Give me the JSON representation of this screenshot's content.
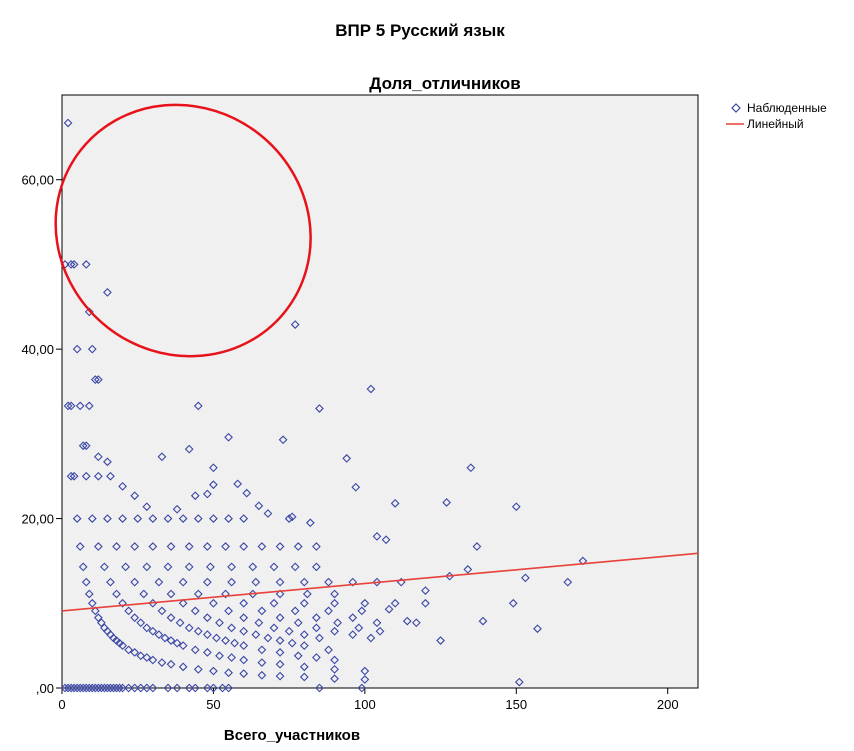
{
  "chart_data": {
    "type": "scatter",
    "title": "ВПР 5 Русский язык",
    "subtitle": "Доля_отличников",
    "xlabel": "Всего_участников",
    "ylabel": "",
    "xlim": [
      0,
      210
    ],
    "ylim": [
      0,
      70
    ],
    "x_ticks": [
      0,
      50,
      100,
      150,
      200
    ],
    "x_tick_labels": [
      "0",
      "50",
      "100",
      "150",
      "200"
    ],
    "y_ticks": [
      0,
      20,
      40,
      60
    ],
    "y_tick_labels": [
      ",00",
      "20,00",
      "40,00",
      "60,00"
    ],
    "grid": false,
    "legend_position": "top-right outside",
    "legend": [
      "Наблюденные",
      "Линейный"
    ],
    "colors": {
      "plot_background": "#f0f0f0",
      "marker": "#3b47a6",
      "fit_line": "#e8413a",
      "annotation_ellipse": "#e8121a"
    },
    "series": [
      {
        "name": "Наблюденные",
        "points": [
          [
            1,
            0
          ],
          [
            2,
            0
          ],
          [
            3,
            0
          ],
          [
            4,
            0
          ],
          [
            5,
            0
          ],
          [
            6,
            0
          ],
          [
            7,
            0
          ],
          [
            8,
            0
          ],
          [
            9,
            0
          ],
          [
            10,
            0
          ],
          [
            11,
            0
          ],
          [
            12,
            0
          ],
          [
            13,
            0
          ],
          [
            14,
            0
          ],
          [
            15,
            0
          ],
          [
            16,
            0
          ],
          [
            17,
            0
          ],
          [
            18,
            0
          ],
          [
            19,
            0
          ],
          [
            20,
            0
          ],
          [
            22,
            0
          ],
          [
            24,
            0
          ],
          [
            26,
            0
          ],
          [
            28,
            0
          ],
          [
            30,
            0
          ],
          [
            35,
            0
          ],
          [
            38,
            0
          ],
          [
            42,
            0
          ],
          [
            44,
            0
          ],
          [
            48,
            0
          ],
          [
            50,
            0
          ],
          [
            53,
            0
          ],
          [
            55,
            0
          ],
          [
            85,
            0
          ],
          [
            99,
            0
          ],
          [
            2,
            66.7
          ],
          [
            1,
            50
          ],
          [
            3,
            50
          ],
          [
            4,
            50
          ],
          [
            8,
            50
          ],
          [
            15,
            46.7
          ],
          [
            9,
            44.4
          ],
          [
            77,
            42.9
          ],
          [
            5,
            40
          ],
          [
            10,
            40
          ],
          [
            11,
            36.4
          ],
          [
            12,
            36.4
          ],
          [
            2,
            33.3
          ],
          [
            3,
            33.3
          ],
          [
            6,
            33.3
          ],
          [
            9,
            33.3
          ],
          [
            45,
            33.3
          ],
          [
            102,
            35.3
          ],
          [
            85,
            33
          ],
          [
            55,
            29.6
          ],
          [
            73,
            29.3
          ],
          [
            7,
            28.6
          ],
          [
            8,
            28.6
          ],
          [
            15,
            26.7
          ],
          [
            12,
            27.3
          ],
          [
            33,
            27.3
          ],
          [
            42,
            28.2
          ],
          [
            50,
            26
          ],
          [
            94,
            27.1
          ],
          [
            135,
            26
          ],
          [
            3,
            25
          ],
          [
            4,
            25
          ],
          [
            8,
            25
          ],
          [
            12,
            25
          ],
          [
            16,
            25
          ],
          [
            20,
            23.8
          ],
          [
            24,
            22.7
          ],
          [
            28,
            21.4
          ],
          [
            38,
            21.1
          ],
          [
            44,
            22.7
          ],
          [
            48,
            22.9
          ],
          [
            50,
            24
          ],
          [
            58,
            24.1
          ],
          [
            61,
            23
          ],
          [
            65,
            21.5
          ],
          [
            68,
            20.6
          ],
          [
            76,
            20.2
          ],
          [
            82,
            19.5
          ],
          [
            97,
            23.7
          ],
          [
            110,
            21.8
          ],
          [
            127,
            21.9
          ],
          [
            150,
            21.4
          ],
          [
            5,
            20
          ],
          [
            10,
            20
          ],
          [
            15,
            20
          ],
          [
            20,
            20
          ],
          [
            25,
            20
          ],
          [
            30,
            20
          ],
          [
            35,
            20
          ],
          [
            40,
            20
          ],
          [
            45,
            20
          ],
          [
            50,
            20
          ],
          [
            55,
            20
          ],
          [
            60,
            20
          ],
          [
            75,
            20
          ],
          [
            6,
            16.7
          ],
          [
            12,
            16.7
          ],
          [
            18,
            16.7
          ],
          [
            24,
            16.7
          ],
          [
            30,
            16.7
          ],
          [
            36,
            16.7
          ],
          [
            42,
            16.7
          ],
          [
            48,
            16.7
          ],
          [
            54,
            16.7
          ],
          [
            60,
            16.7
          ],
          [
            66,
            16.7
          ],
          [
            72,
            16.7
          ],
          [
            78,
            16.7
          ],
          [
            84,
            16.7
          ],
          [
            104,
            17.9
          ],
          [
            107,
            17.5
          ],
          [
            137,
            16.7
          ],
          [
            7,
            14.3
          ],
          [
            14,
            14.3
          ],
          [
            21,
            14.3
          ],
          [
            28,
            14.3
          ],
          [
            35,
            14.3
          ],
          [
            42,
            14.3
          ],
          [
            49,
            14.3
          ],
          [
            56,
            14.3
          ],
          [
            63,
            14.3
          ],
          [
            70,
            14.3
          ],
          [
            77,
            14.3
          ],
          [
            84,
            14.3
          ],
          [
            8,
            12.5
          ],
          [
            16,
            12.5
          ],
          [
            24,
            12.5
          ],
          [
            32,
            12.5
          ],
          [
            40,
            12.5
          ],
          [
            48,
            12.5
          ],
          [
            56,
            12.5
          ],
          [
            64,
            12.5
          ],
          [
            72,
            12.5
          ],
          [
            80,
            12.5
          ],
          [
            88,
            12.5
          ],
          [
            96,
            12.5
          ],
          [
            104,
            12.5
          ],
          [
            112,
            12.5
          ],
          [
            120,
            11.5
          ],
          [
            128,
            13.2
          ],
          [
            134,
            14
          ],
          [
            153,
            13
          ],
          [
            172,
            15
          ],
          [
            167,
            12.5
          ],
          [
            9,
            11.1
          ],
          [
            18,
            11.1
          ],
          [
            27,
            11.1
          ],
          [
            36,
            11.1
          ],
          [
            45,
            11.1
          ],
          [
            54,
            11.1
          ],
          [
            63,
            11.1
          ],
          [
            72,
            11.1
          ],
          [
            81,
            11.1
          ],
          [
            90,
            11.1
          ],
          [
            10,
            10
          ],
          [
            20,
            10
          ],
          [
            30,
            10
          ],
          [
            40,
            10
          ],
          [
            50,
            10
          ],
          [
            60,
            10
          ],
          [
            70,
            10
          ],
          [
            80,
            10
          ],
          [
            90,
            10
          ],
          [
            100,
            10
          ],
          [
            110,
            10
          ],
          [
            120,
            10
          ],
          [
            149,
            10
          ],
          [
            11,
            9.1
          ],
          [
            22,
            9.1
          ],
          [
            33,
            9.1
          ],
          [
            44,
            9.1
          ],
          [
            55,
            9.1
          ],
          [
            66,
            9.1
          ],
          [
            77,
            9.1
          ],
          [
            88,
            9.1
          ],
          [
            99,
            9.1
          ],
          [
            108,
            9.3
          ],
          [
            12,
            8.3
          ],
          [
            24,
            8.3
          ],
          [
            36,
            8.3
          ],
          [
            48,
            8.3
          ],
          [
            60,
            8.3
          ],
          [
            72,
            8.3
          ],
          [
            84,
            8.3
          ],
          [
            96,
            8.3
          ],
          [
            114,
            7.9
          ],
          [
            13,
            7.7
          ],
          [
            26,
            7.7
          ],
          [
            39,
            7.7
          ],
          [
            52,
            7.7
          ],
          [
            65,
            7.7
          ],
          [
            78,
            7.7
          ],
          [
            91,
            7.7
          ],
          [
            104,
            7.7
          ],
          [
            117,
            7.7
          ],
          [
            139,
            7.9
          ],
          [
            14,
            7.1
          ],
          [
            28,
            7.1
          ],
          [
            42,
            7.1
          ],
          [
            56,
            7.1
          ],
          [
            70,
            7.1
          ],
          [
            84,
            7.1
          ],
          [
            98,
            7.1
          ],
          [
            157,
            7
          ],
          [
            15,
            6.7
          ],
          [
            30,
            6.7
          ],
          [
            45,
            6.7
          ],
          [
            60,
            6.7
          ],
          [
            75,
            6.7
          ],
          [
            90,
            6.7
          ],
          [
            105,
            6.7
          ],
          [
            16,
            6.3
          ],
          [
            32,
            6.3
          ],
          [
            48,
            6.3
          ],
          [
            64,
            6.3
          ],
          [
            80,
            6.3
          ],
          [
            96,
            6.3
          ],
          [
            102,
            5.9
          ],
          [
            17,
            5.9
          ],
          [
            34,
            5.9
          ],
          [
            51,
            5.9
          ],
          [
            68,
            5.9
          ],
          [
            85,
            5.9
          ],
          [
            18,
            5.6
          ],
          [
            36,
            5.6
          ],
          [
            54,
            5.6
          ],
          [
            72,
            5.6
          ],
          [
            125,
            5.6
          ],
          [
            19,
            5.3
          ],
          [
            38,
            5.3
          ],
          [
            57,
            5.3
          ],
          [
            76,
            5.3
          ],
          [
            20,
            5
          ],
          [
            40,
            5
          ],
          [
            60,
            5
          ],
          [
            80,
            5
          ],
          [
            22,
            4.5
          ],
          [
            44,
            4.5
          ],
          [
            66,
            4.5
          ],
          [
            88,
            4.5
          ],
          [
            24,
            4.2
          ],
          [
            48,
            4.2
          ],
          [
            72,
            4.2
          ],
          [
            26,
            3.8
          ],
          [
            52,
            3.8
          ],
          [
            78,
            3.8
          ],
          [
            28,
            3.6
          ],
          [
            56,
            3.6
          ],
          [
            84,
            3.6
          ],
          [
            30,
            3.3
          ],
          [
            60,
            3.3
          ],
          [
            90,
            3.3
          ],
          [
            33,
            3
          ],
          [
            66,
            3
          ],
          [
            36,
            2.8
          ],
          [
            72,
            2.8
          ],
          [
            40,
            2.5
          ],
          [
            80,
            2.5
          ],
          [
            45,
            2.2
          ],
          [
            90,
            2.2
          ],
          [
            50,
            2
          ],
          [
            100,
            2
          ],
          [
            55,
            1.8
          ],
          [
            60,
            1.7
          ],
          [
            66,
            1.5
          ],
          [
            72,
            1.4
          ],
          [
            80,
            1.3
          ],
          [
            90,
            1.1
          ],
          [
            100,
            1
          ],
          [
            151,
            0.7
          ]
        ]
      }
    ],
    "fit_line": {
      "name": "Линейный",
      "x": [
        0,
        210
      ],
      "y": [
        9.1,
        15.9
      ]
    },
    "annotation": {
      "shape": "ellipse",
      "center": [
        40,
        54
      ],
      "radius_x": 43,
      "radius_y": 14.5,
      "rotation_deg": 38
    }
  }
}
